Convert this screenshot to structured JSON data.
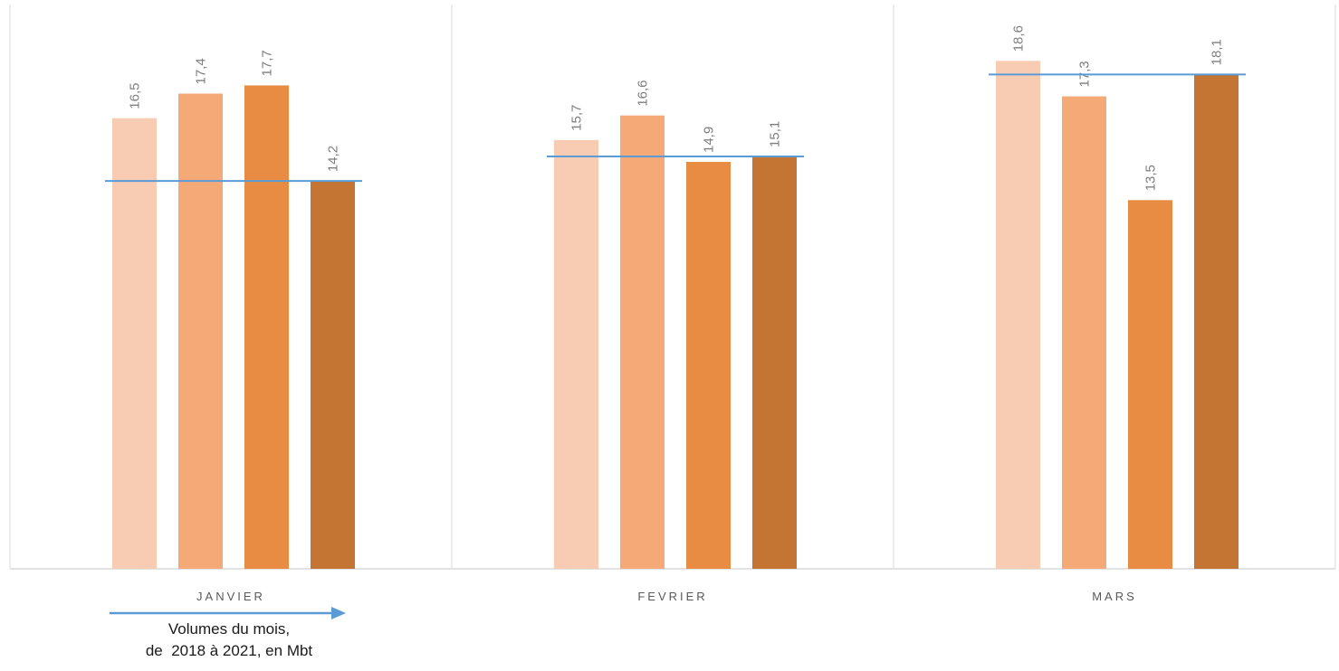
{
  "chart_data": {
    "type": "bar",
    "categories": [
      "JANVIER",
      "FEVRIER",
      "MARS"
    ],
    "series": [
      {
        "values": [
          16.5,
          15.7,
          18.6
        ],
        "color": "#f8cbb3"
      },
      {
        "values": [
          17.4,
          16.6,
          17.3
        ],
        "color": "#f5a977"
      },
      {
        "values": [
          17.7,
          14.9,
          13.5
        ],
        "color": "#e78c42"
      },
      {
        "values": [
          14.2,
          15.1,
          18.1
        ],
        "color": "#c47433"
      }
    ],
    "data_labels": [
      [
        "16,5",
        "17,4",
        "17,7",
        "14,2"
      ],
      [
        "15,7",
        "16,6",
        "14,9",
        "15,1"
      ],
      [
        "18,6",
        "17,3",
        "13,5",
        "18,1"
      ]
    ],
    "reference_line_color": "#5b9bd5",
    "ylim": [
      0,
      19
    ],
    "grid": false
  },
  "annotation": {
    "line1": "Volumes du mois,",
    "line2": "de  2018 à 2021, en Mbt",
    "arrow_color": "#5b9bd5"
  }
}
